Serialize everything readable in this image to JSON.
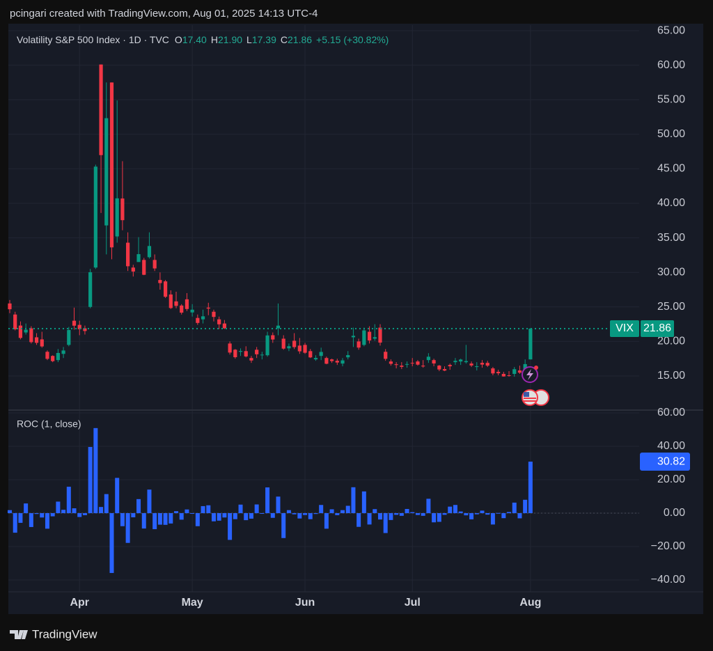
{
  "header": {
    "attribution": "pcingari created with TradingView.com, Aug 01, 2025 14:13 UTC-4"
  },
  "footer": {
    "brand": "TradingView"
  },
  "chart_data": [
    {
      "type": "candlestick",
      "title": "Volatility S&P 500 Index · 1D · TVC",
      "readout": [
        {
          "key": "O",
          "text": "17.40"
        },
        {
          "key": "H",
          "text": "21.90"
        },
        {
          "key": "L",
          "text": "17.39"
        },
        {
          "key": "C",
          "text": "21.86"
        }
      ],
      "change": "+5.15 (+30.82%)",
      "up_color": "#089981",
      "down_color": "#f23645",
      "grid": true,
      "categories": [
        null,
        null,
        null,
        null,
        null,
        null,
        null,
        null,
        null,
        null,
        null,
        null,
        null,
        "Apr",
        null,
        null,
        null,
        null,
        null,
        null,
        null,
        null,
        null,
        null,
        null,
        null,
        null,
        null,
        null,
        null,
        null,
        null,
        null,
        null,
        "May",
        null,
        null,
        null,
        null,
        null,
        null,
        null,
        null,
        null,
        null,
        null,
        null,
        null,
        null,
        null,
        null,
        null,
        null,
        null,
        null,
        "Jun",
        null,
        null,
        null,
        null,
        null,
        null,
        null,
        null,
        null,
        null,
        null,
        null,
        null,
        null,
        null,
        null,
        null,
        null,
        null,
        "Jul",
        null,
        null,
        null,
        null,
        null,
        null,
        null,
        null,
        null,
        null,
        null,
        null,
        null,
        null,
        null,
        null,
        null,
        null,
        null,
        null,
        null,
        "Aug"
      ],
      "open": [
        25.5,
        23.9,
        22.3,
        21.3,
        21.9,
        20.6,
        20.3,
        18.5,
        17.9,
        17.3,
        18.2,
        19.5,
        23.0,
        22.4,
        21.9,
        25.0,
        30.7,
        60.1,
        36.8,
        57.5,
        35.2,
        40.7,
        34.3,
        30.7,
        31.5,
        31.8,
        32.2,
        31.8,
        28.9,
        28.7,
        26.8,
        25.8,
        25.2,
        26.1,
        24.2,
        23.4,
        23.2,
        24.9,
        24.3,
        23.2,
        22.6,
        19.7,
        18.8,
        18.5,
        18.6,
        17.6,
        18.8,
        18.0,
        18.0,
        20.9,
        21.9,
        20.4,
        19.0,
        20.1,
        19.4,
        19.5,
        18.6,
        17.4,
        17.9,
        17.6,
        17.4,
        17.2,
        16.8,
        17.7,
        20.6,
        20.0,
        19.5,
        21.4,
        20.4,
        22.0,
        18.5,
        17.1,
        16.7,
        16.5,
        16.7,
        16.9,
        17.1,
        16.5,
        17.3,
        17.3,
        16.5,
        16.0,
        16.6,
        17.0,
        17.1,
        17.0,
        16.8,
        16.3,
        16.9,
        16.9,
        16.1,
        15.6,
        15.3,
        15.1,
        15.3,
        15.8,
        15.5,
        17.4
      ],
      "high": [
        26.0,
        24.3,
        22.9,
        22.6,
        22.2,
        21.2,
        21.4,
        18.7,
        18.0,
        18.9,
        19.2,
        22.1,
        24.9,
        23.0,
        22.3,
        30.5,
        45.6,
        60.1,
        57.5,
        57.5,
        54.9,
        46.1,
        35.8,
        31.1,
        35.1,
        32.1,
        35.8,
        32.6,
        30.0,
        28.9,
        27.4,
        27.2,
        25.4,
        27.0,
        25.4,
        23.9,
        24.6,
        25.6,
        24.6,
        23.6,
        23.1,
        20.0,
        18.9,
        19.0,
        19.3,
        17.9,
        19.2,
        18.5,
        21.4,
        21.3,
        25.5,
        20.9,
        19.7,
        21.2,
        20.5,
        19.8,
        18.9,
        18.0,
        19.1,
        17.8,
        17.5,
        17.5,
        17.6,
        18.6,
        22.0,
        20.4,
        22.0,
        22.2,
        22.5,
        22.5,
        18.9,
        17.4,
        17.0,
        17.0,
        17.1,
        17.6,
        17.3,
        17.3,
        18.3,
        17.5,
        16.6,
        16.4,
        16.8,
        17.6,
        17.5,
        19.5,
        17.1,
        17.0,
        17.3,
        17.2,
        16.3,
        15.9,
        15.6,
        15.7,
        16.3,
        16.5,
        17.4,
        21.9
      ],
      "low": [
        24.1,
        21.6,
        20.3,
        21.0,
        19.7,
        19.5,
        19.1,
        17.3,
        17.0,
        17.0,
        17.6,
        19.3,
        21.7,
        20.9,
        21.0,
        24.8,
        30.5,
        38.6,
        32.6,
        31.9,
        34.3,
        36.1,
        30.2,
        29.4,
        31.8,
        29.6,
        32.0,
        30.2,
        27.5,
        26.3,
        24.7,
        24.8,
        23.9,
        24.4,
        23.6,
        22.4,
        22.6,
        23.8,
        22.9,
        21.8,
        21.8,
        18.1,
        17.5,
        17.9,
        17.7,
        16.9,
        17.6,
        17.4,
        17.8,
        19.8,
        20.9,
        18.8,
        18.6,
        18.9,
        18.2,
        18.2,
        17.6,
        17.2,
        17.3,
        16.7,
        16.9,
        16.6,
        16.4,
        17.4,
        19.2,
        18.8,
        19.3,
        19.7,
        20.1,
        19.4,
        17.2,
        16.5,
        16.1,
        16.0,
        16.2,
        16.4,
        16.5,
        16.2,
        16.9,
        16.4,
        15.7,
        15.7,
        15.9,
        16.6,
        16.6,
        16.8,
        16.3,
        15.8,
        16.2,
        16.3,
        15.1,
        15.1,
        14.9,
        14.9,
        14.9,
        15.3,
        15.2,
        17.39
      ],
      "close": [
        24.66,
        21.77,
        20.51,
        21.7,
        19.9,
        19.8,
        19.28,
        17.48,
        17.15,
        18.33,
        18.69,
        21.65,
        22.28,
        21.77,
        21.51,
        30.02,
        45.31,
        46.98,
        52.33,
        33.62,
        40.72,
        37.56,
        30.89,
        30.12,
        32.64,
        29.65,
        33.82,
        30.57,
        28.45,
        26.47,
        24.84,
        25.15,
        24.17,
        24.7,
        24.6,
        22.68,
        23.64,
        24.76,
        23.55,
        22.48,
        21.9,
        18.39,
        17.72,
        18.62,
        17.83,
        17.24,
        18.14,
        18.09,
        20.87,
        20.28,
        22.29,
        18.96,
        19.31,
        19.18,
        18.57,
        18.36,
        17.69,
        17.61,
        18.48,
        16.77,
        17.16,
        16.95,
        17.26,
        18.02,
        20.82,
        19.11,
        21.6,
        20.14,
        20.62,
        19.83,
        17.48,
        16.76,
        16.59,
        16.32,
        16.73,
        16.83,
        16.64,
        16.38,
        17.79,
        16.81,
        15.94,
        15.78,
        16.4,
        17.2,
        17.38,
        17.16,
        16.52,
        16.41,
        16.65,
        16.5,
        15.37,
        15.39,
        14.93,
        15.03,
        15.98,
        15.48,
        16.72,
        21.86
      ],
      "last_price": {
        "name": "VIX",
        "value": 21.86,
        "label": "21.86"
      },
      "ylim": [
        10.16,
        65.81
      ],
      "yticks": [
        {
          "value": 15,
          "label": "15.00"
        },
        {
          "value": 20,
          "label": "20.00"
        },
        {
          "value": 25,
          "label": "25.00"
        },
        {
          "value": 30,
          "label": "30.00"
        },
        {
          "value": 35,
          "label": "35.00"
        },
        {
          "value": 40,
          "label": "40.00"
        },
        {
          "value": 45,
          "label": "45.00"
        },
        {
          "value": 50,
          "label": "50.00"
        },
        {
          "value": 55,
          "label": "55.00"
        },
        {
          "value": 60,
          "label": "60.00"
        },
        {
          "value": 65,
          "label": "65.00"
        }
      ]
    },
    {
      "type": "bar",
      "title": "ROC (1, close)",
      "color": "#2962ff",
      "grid": true,
      "values": [
        1.8,
        -11.7,
        -5.8,
        5.8,
        -8.3,
        -0.5,
        -2.6,
        -9.3,
        -1.9,
        6.9,
        2.0,
        15.8,
        2.9,
        -2.3,
        -1.2,
        39.6,
        50.9,
        3.7,
        11.4,
        -35.8,
        21.1,
        -7.8,
        -17.8,
        -2.5,
        8.4,
        -9.2,
        14.1,
        -9.6,
        -6.9,
        -7.0,
        -6.2,
        1.2,
        -3.9,
        2.2,
        -0.4,
        -7.8,
        4.2,
        4.7,
        -4.9,
        -4.5,
        -2.6,
        -16.0,
        -3.6,
        5.1,
        -4.2,
        -3.3,
        5.2,
        -0.3,
        15.4,
        -2.8,
        9.9,
        -14.9,
        1.8,
        -0.7,
        -3.2,
        -1.1,
        -3.6,
        -0.5,
        4.9,
        -9.3,
        2.3,
        -1.2,
        1.8,
        4.4,
        15.5,
        -8.2,
        13.0,
        -6.8,
        2.4,
        -3.8,
        -11.9,
        -4.1,
        -1.0,
        -1.6,
        2.5,
        0.6,
        -1.1,
        -1.6,
        8.6,
        -5.5,
        -5.2,
        -1.0,
        3.9,
        4.9,
        1.0,
        -1.3,
        -3.7,
        -0.7,
        1.5,
        -0.9,
        -6.8,
        0.1,
        -3.0,
        0.7,
        6.3,
        -3.1,
        8.0,
        30.82
      ],
      "last_value": 30.82,
      "ylim": [
        -47.08,
        61.25
      ],
      "yticks": [
        {
          "value": -40,
          "label": "−40.00"
        },
        {
          "value": -20,
          "label": "−20.00"
        },
        {
          "value": 0,
          "label": "0.00"
        },
        {
          "value": 20,
          "label": "20.00"
        },
        {
          "value": 40,
          "label": "40.00"
        },
        {
          "value": 60,
          "label": "60.00"
        }
      ]
    }
  ]
}
